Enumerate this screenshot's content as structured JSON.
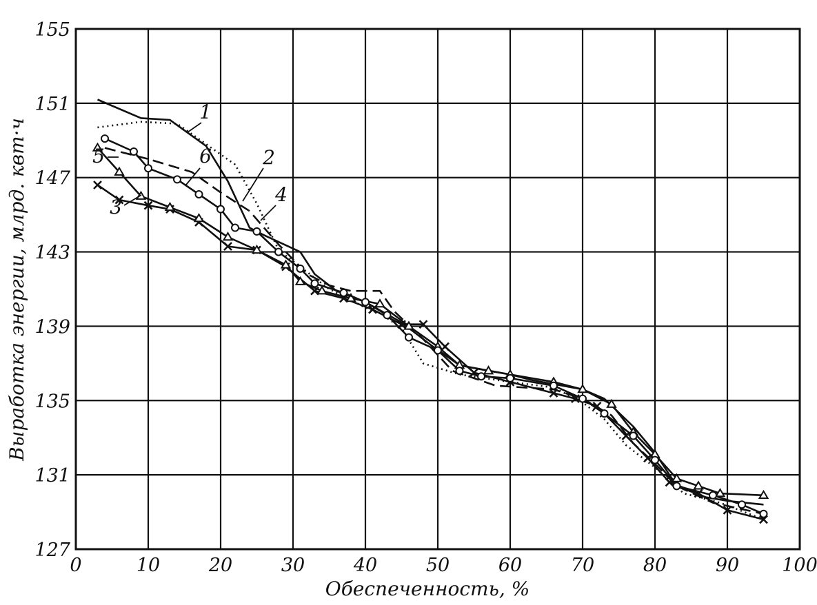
{
  "chart_data": {
    "type": "line",
    "title": "",
    "xlabel": "Обеспеченность, %",
    "ylabel": "Выработка энергии, млрд. квт·ч",
    "xlim": [
      0,
      100
    ],
    "ylim": [
      127,
      155
    ],
    "x_ticks": [
      "0",
      "10",
      "20",
      "30",
      "40",
      "50",
      "60",
      "70",
      "80",
      "90",
      "100"
    ],
    "y_ticks": [
      "127",
      "131",
      "135",
      "139",
      "143",
      "147",
      "151",
      "155"
    ],
    "grid": true,
    "series": [
      {
        "name": "1",
        "style": "solid",
        "marker": "none",
        "points": [
          [
            3,
            151.2
          ],
          [
            9,
            150.2
          ],
          [
            13,
            150.1
          ],
          [
            18,
            148.7
          ],
          [
            21,
            146.8
          ],
          [
            24,
            144.3
          ],
          [
            26,
            143.9
          ],
          [
            31,
            143.0
          ],
          [
            33,
            141.8
          ],
          [
            36,
            140.9
          ],
          [
            40,
            140.3
          ],
          [
            45,
            139.2
          ],
          [
            49,
            138.0
          ],
          [
            53,
            136.9
          ],
          [
            60,
            136.4
          ],
          [
            63,
            136.1
          ],
          [
            70,
            135.6
          ],
          [
            73,
            135.1
          ],
          [
            77,
            133.6
          ],
          [
            80,
            132.2
          ],
          [
            83,
            130.4
          ],
          [
            87,
            129.8
          ],
          [
            90,
            129.6
          ],
          [
            95,
            129.4
          ]
        ]
      },
      {
        "name": "2",
        "style": "dashed",
        "marker": "none",
        "points": [
          [
            4,
            148.6
          ],
          [
            10,
            148.0
          ],
          [
            16,
            147.3
          ],
          [
            20,
            146.2
          ],
          [
            24,
            145.2
          ],
          [
            28,
            143.4
          ],
          [
            32,
            141.8
          ],
          [
            35,
            141.2
          ],
          [
            38,
            140.9
          ],
          [
            42,
            140.9
          ],
          [
            44,
            139.8
          ],
          [
            48,
            138.3
          ],
          [
            52,
            136.6
          ],
          [
            58,
            135.8
          ],
          [
            66,
            135.6
          ],
          [
            70,
            135.1
          ],
          [
            74,
            134.2
          ],
          [
            77,
            132.7
          ],
          [
            80,
            131.6
          ],
          [
            83,
            130.4
          ],
          [
            88,
            129.5
          ],
          [
            95,
            128.9
          ]
        ]
      },
      {
        "name": "3",
        "style": "solid",
        "marker": "x",
        "points": [
          [
            3,
            146.6
          ],
          [
            6,
            145.8
          ],
          [
            10,
            145.5
          ],
          [
            13,
            145.3
          ],
          [
            17,
            144.6
          ],
          [
            21,
            143.3
          ],
          [
            25,
            143.1
          ],
          [
            29,
            142.2
          ],
          [
            33,
            140.9
          ],
          [
            37,
            140.5
          ],
          [
            41,
            139.9
          ],
          [
            45,
            139.1
          ],
          [
            48,
            139.1
          ],
          [
            51,
            137.9
          ],
          [
            55,
            136.5
          ],
          [
            60,
            136.0
          ],
          [
            66,
            135.4
          ],
          [
            69,
            135.1
          ],
          [
            72,
            134.7
          ],
          [
            76,
            133.1
          ],
          [
            79,
            131.9
          ],
          [
            82,
            130.6
          ],
          [
            86,
            130.0
          ],
          [
            90,
            129.1
          ],
          [
            95,
            128.6
          ]
        ]
      },
      {
        "name": "4",
        "style": "dotted",
        "marker": "none",
        "points": [
          [
            3,
            149.7
          ],
          [
            9,
            150.0
          ],
          [
            14,
            149.9
          ],
          [
            18,
            148.8
          ],
          [
            22,
            147.7
          ],
          [
            25,
            145.6
          ],
          [
            28,
            143.1
          ],
          [
            31,
            142.2
          ],
          [
            35,
            141.0
          ],
          [
            40,
            140.0
          ],
          [
            42,
            139.7
          ],
          [
            45,
            138.9
          ],
          [
            48,
            137.0
          ],
          [
            53,
            136.4
          ],
          [
            60,
            136.0
          ],
          [
            66,
            135.7
          ],
          [
            70,
            134.9
          ],
          [
            73,
            134.0
          ],
          [
            76,
            132.6
          ],
          [
            80,
            131.4
          ],
          [
            84,
            130.0
          ],
          [
            89,
            129.5
          ],
          [
            95,
            128.6
          ]
        ]
      },
      {
        "name": "5",
        "style": "solid",
        "marker": "triangle",
        "points": [
          [
            3,
            148.6
          ],
          [
            6,
            147.3
          ],
          [
            9,
            146.0
          ],
          [
            13,
            145.4
          ],
          [
            17,
            144.8
          ],
          [
            21,
            143.8
          ],
          [
            25,
            143.1
          ],
          [
            29,
            142.3
          ],
          [
            31,
            141.4
          ],
          [
            34,
            140.9
          ],
          [
            38,
            140.5
          ],
          [
            42,
            140.2
          ],
          [
            46,
            139.0
          ],
          [
            50,
            137.9
          ],
          [
            53,
            136.9
          ],
          [
            57,
            136.6
          ],
          [
            60,
            136.4
          ],
          [
            66,
            136.0
          ],
          [
            70,
            135.6
          ],
          [
            74,
            134.8
          ],
          [
            77,
            133.3
          ],
          [
            80,
            132.1
          ],
          [
            83,
            130.8
          ],
          [
            86,
            130.4
          ],
          [
            89,
            130.0
          ],
          [
            95,
            129.9
          ]
        ]
      },
      {
        "name": "6",
        "style": "solid",
        "marker": "circle",
        "points": [
          [
            4,
            149.1
          ],
          [
            8,
            148.4
          ],
          [
            10,
            147.5
          ],
          [
            14,
            146.9
          ],
          [
            17,
            146.1
          ],
          [
            20,
            145.3
          ],
          [
            22,
            144.3
          ],
          [
            25,
            144.1
          ],
          [
            28,
            143.0
          ],
          [
            31,
            142.1
          ],
          [
            33,
            141.3
          ],
          [
            37,
            140.8
          ],
          [
            40,
            140.3
          ],
          [
            43,
            139.6
          ],
          [
            46,
            138.4
          ],
          [
            50,
            137.7
          ],
          [
            53,
            136.6
          ],
          [
            56,
            136.3
          ],
          [
            60,
            136.2
          ],
          [
            66,
            135.8
          ],
          [
            70,
            135.1
          ],
          [
            73,
            134.3
          ],
          [
            77,
            133.1
          ],
          [
            80,
            131.8
          ],
          [
            83,
            130.4
          ],
          [
            88,
            129.9
          ],
          [
            92,
            129.4
          ],
          [
            95,
            128.9
          ]
        ]
      }
    ],
    "annotations": [
      "1",
      "2",
      "3",
      "4",
      "5",
      "6"
    ]
  }
}
